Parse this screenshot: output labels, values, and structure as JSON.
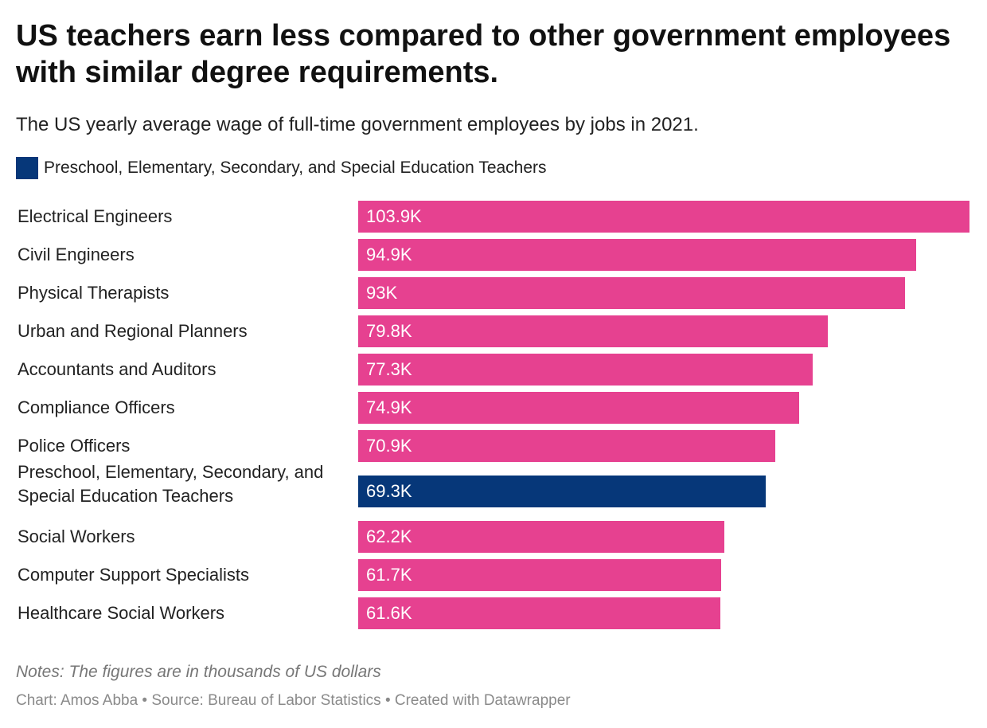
{
  "title": "US teachers earn less compared to other government employees with similar degree requirements.",
  "subtitle": "The US yearly average wage of full-time government employees by jobs in 2021.",
  "legend": {
    "label": "Preschool, Elementary, Secondary, and Special Education Teachers",
    "color": "#063779"
  },
  "notes": "Notes: The figures are in thousands of US dollars",
  "footer": "Chart: Amos Abba • Source: Bureau of Labor Statistics • Created with Datawrapper",
  "colors": {
    "default_bar": "#e64190",
    "highlight_bar": "#063779"
  },
  "chart_data": {
    "type": "bar",
    "orientation": "horizontal",
    "categories": [
      "Electrical Engineers",
      "Civil Engineers",
      "Physical Therapists",
      "Urban and Regional Planners",
      "Accountants and Auditors",
      "Compliance Officers",
      "Police Officers",
      "Preschool, Elementary, Secondary, and Special Education Teachers",
      "Social Workers",
      "Computer Support Specialists",
      "Healthcare Social Workers"
    ],
    "values": [
      103.9,
      94.9,
      93,
      79.8,
      77.3,
      74.9,
      70.9,
      69.3,
      62.2,
      61.7,
      61.6
    ],
    "value_labels": [
      "103.9K",
      "94.9K",
      "93K",
      "79.8K",
      "77.3K",
      "74.9K",
      "70.9K",
      "69.3K",
      "62.2K",
      "61.7K",
      "61.6K"
    ],
    "highlighted": [
      "Preschool, Elementary, Secondary, and Special Education Teachers"
    ],
    "xlim": [
      0,
      103.9
    ],
    "grid": false,
    "legend_position": "top-left"
  }
}
